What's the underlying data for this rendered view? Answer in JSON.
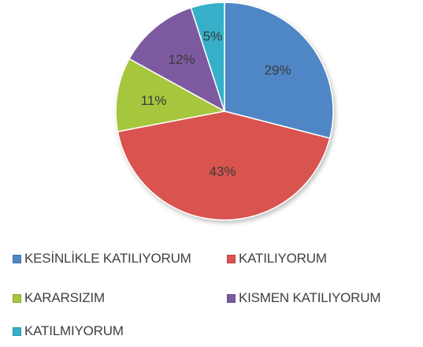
{
  "chart_data": {
    "type": "pie",
    "slices": [
      {
        "label": "KESİNLİKLE KATILIYORUM",
        "value": 29,
        "value_label": "29%",
        "color": "#4f86c6"
      },
      {
        "label": "KATILIYORUM",
        "value": 43,
        "value_label": "43%",
        "color": "#d9534f"
      },
      {
        "label": "KARARSIZIM",
        "value": 11,
        "value_label": "11%",
        "color": "#a6c63c"
      },
      {
        "label": "KISMEN KATILIYORUM",
        "value": 12,
        "value_label": "12%",
        "color": "#7d5a9f"
      },
      {
        "label": "KATILMIYORUM",
        "value": 5,
        "value_label": "5%",
        "color": "#34b0c8"
      }
    ],
    "legend_position": "bottom"
  }
}
